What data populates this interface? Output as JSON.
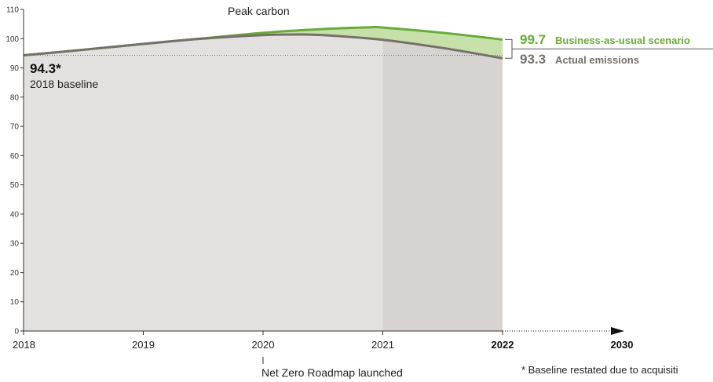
{
  "chart_data": {
    "type": "area",
    "ylim": [
      0,
      110
    ],
    "yticks": [
      0,
      10,
      20,
      30,
      40,
      50,
      60,
      70,
      80,
      90,
      100,
      110
    ],
    "xticks": [
      {
        "label": "2018",
        "x": 2018.0,
        "bold": false
      },
      {
        "label": "2019",
        "x": 2019.0,
        "bold": false
      },
      {
        "label": "2020",
        "x": 2020.0,
        "bold": false
      },
      {
        "label": "2021",
        "x": 2021.0,
        "bold": false
      },
      {
        "label": "2022",
        "x": 2022.0,
        "bold": true
      },
      {
        "label": "2030",
        "x": 2023.0,
        "bold": true
      }
    ],
    "series": [
      {
        "name": "Business-as-usual scenario",
        "color": "#6aaa3a",
        "x": [
          2018.0,
          2018.5,
          2019.0,
          2019.5,
          2020.0,
          2020.5,
          2020.9,
          2021.0,
          2021.5,
          2022.0
        ],
        "values": [
          94.3,
          96.2,
          98.2,
          100.1,
          102.0,
          103.3,
          103.9,
          103.8,
          102.0,
          99.7
        ]
      },
      {
        "name": "Actual emissions",
        "color": "#77706a",
        "x": [
          2018.0,
          2018.5,
          2019.0,
          2019.5,
          2020.0,
          2020.3,
          2020.5,
          2021.0,
          2021.5,
          2022.0
        ],
        "values": [
          94.3,
          96.2,
          98.2,
          100.0,
          101.2,
          101.4,
          101.2,
          99.6,
          96.8,
          93.3
        ]
      }
    ],
    "baseline": {
      "value": 94.3,
      "value_label": "94.3*",
      "label": "2018 baseline"
    },
    "end_labels": [
      {
        "value": "99.7",
        "text": "Business-as-usual scenario",
        "color": "#6aaa3a"
      },
      {
        "value": "93.3",
        "text": "Actual emissions",
        "color": "#77706a"
      }
    ],
    "annotations": {
      "peak": "Peak carbon",
      "roadmap": "Net Zero Roadmap launched",
      "footnote": "* Baseline restated due to acquisiti"
    },
    "colors": {
      "fill_main": "#e3e1e0",
      "fill_recent": "#d7d3d1",
      "gap_fill": "#c6e0aa",
      "axis": "#333333"
    }
  }
}
